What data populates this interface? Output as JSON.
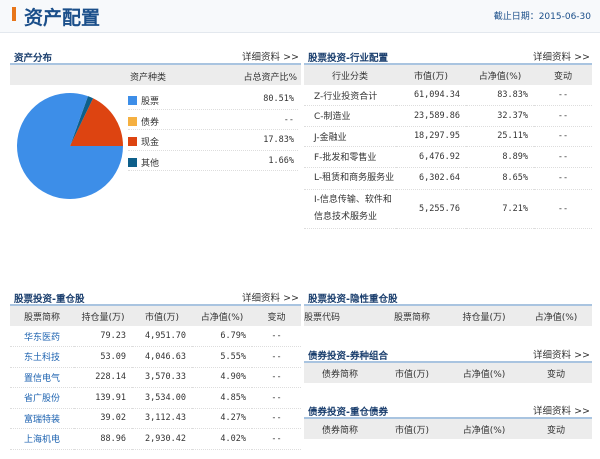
{
  "header": {
    "title": "资产配置",
    "date_label": "截止日期：2015-06-30"
  },
  "asset_dist": {
    "title": "资产分布",
    "more": "详细资料 >>",
    "col_type": "资产种类",
    "col_pct": "占总资产比%",
    "items": [
      {
        "label": "股票",
        "pct": "80.51%",
        "color": "#3d8ee8",
        "value": 80.51
      },
      {
        "label": "债券",
        "pct": "--",
        "color": "#f5b041",
        "value": 0
      },
      {
        "label": "现金",
        "pct": "17.83%",
        "color": "#dd4411",
        "value": 17.83
      },
      {
        "label": "其他",
        "pct": "1.66%",
        "color": "#0e5f8a",
        "value": 1.66
      }
    ]
  },
  "industry": {
    "title": "股票投资-行业配置",
    "more": "详细资料 >>",
    "cols": [
      "行业分类",
      "市值(万)",
      "占净值(%)",
      "变动"
    ],
    "rows": [
      [
        "Z-行业投资合计",
        "61,094.34",
        "83.83%",
        "--"
      ],
      [
        "C-制造业",
        "23,589.86",
        "32.37%",
        "--"
      ],
      [
        "J-金融业",
        "18,297.95",
        "25.11%",
        "--"
      ],
      [
        "F-批发和零售业",
        "6,476.92",
        "8.89%",
        "--"
      ],
      [
        "L-租赁和商务服务业",
        "6,302.64",
        "8.65%",
        "--"
      ],
      [
        "I-信息传输、软件和信息技术服务业",
        "5,255.76",
        "7.21%",
        "--"
      ]
    ]
  },
  "top_stocks": {
    "title": "股票投资-重仓股",
    "more": "详细资料 >>",
    "cols": [
      "股票简称",
      "持仓量(万)",
      "市值(万)",
      "占净值(%)",
      "变动"
    ],
    "rows": [
      [
        "华东医药",
        "79.23",
        "4,951.70",
        "6.79%",
        "--"
      ],
      [
        "东土科技",
        "53.09",
        "4,046.63",
        "5.55%",
        "--"
      ],
      [
        "置信电气",
        "228.14",
        "3,570.33",
        "4.90%",
        "--"
      ],
      [
        "省广股份",
        "139.91",
        "3,534.00",
        "4.85%",
        "--"
      ],
      [
        "富瑞特装",
        "39.02",
        "3,112.43",
        "4.27%",
        "--"
      ],
      [
        "上海机电",
        "88.96",
        "2,930.42",
        "4.02%",
        "--"
      ]
    ]
  },
  "hidden_stocks": {
    "title": "股票投资-隐性重仓股",
    "cols": [
      "股票代码",
      "股票简称",
      "持仓量(万)",
      "占净值(%)"
    ]
  },
  "bond_types": {
    "title": "债券投资-券种组合",
    "more": "详细资料 >>",
    "cols": [
      "债券简称",
      "市值(万)",
      "占净值(%)",
      "变动"
    ]
  },
  "top_bonds": {
    "title": "债券投资-重仓债券",
    "more": "详细资料 >>",
    "cols": [
      "债券简称",
      "市值(万)",
      "占净值(%)",
      "变动"
    ]
  }
}
